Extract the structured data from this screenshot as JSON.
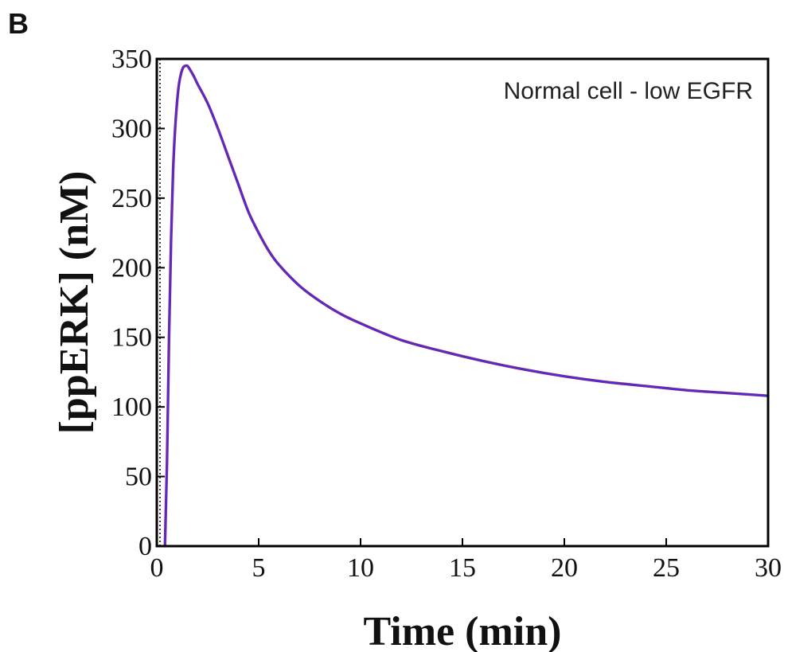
{
  "panel_label": "B",
  "chart_data": {
    "type": "line",
    "title": "",
    "xlabel": "Time (min)",
    "ylabel": "[ppERK] (nM)",
    "annotation": "Normal cell - low EGFR",
    "xlim": [
      0,
      30
    ],
    "ylim": [
      0,
      350
    ],
    "xticks": [
      0,
      5,
      10,
      15,
      20,
      25,
      30
    ],
    "yticks": [
      0,
      50,
      100,
      150,
      200,
      250,
      300,
      350
    ],
    "colors": {
      "series_red": "#d22020",
      "series_blue": "#4a2fd6"
    },
    "series": [
      {
        "x": [
          0.4,
          0.5,
          0.6,
          0.7,
          0.8,
          0.9,
          1.0,
          1.1,
          1.2,
          1.3,
          1.4,
          1.5,
          1.6,
          1.8,
          2.0,
          2.5,
          3.0,
          3.5,
          4.0,
          4.5,
          5.0,
          5.5,
          6.0,
          7.0,
          8.0,
          9.0,
          10.0,
          12.0,
          14.0,
          16.0,
          18.0,
          20.0,
          22.0,
          24.0,
          26.0,
          28.0,
          30.0
        ],
        "y": [
          0,
          60,
          150,
          220,
          270,
          300,
          320,
          333,
          340,
          344,
          345,
          345,
          343,
          338,
          332,
          318,
          300,
          280,
          260,
          240,
          225,
          212,
          202,
          187,
          176,
          167,
          160,
          148,
          140,
          133,
          127,
          122,
          118,
          115,
          112,
          110,
          108
        ]
      },
      {
        "x": [
          0.4,
          0.5,
          0.6,
          0.7,
          0.8,
          0.9,
          1.0,
          1.1,
          1.2,
          1.3,
          1.4,
          1.5,
          1.6,
          1.8,
          2.0,
          2.5,
          3.0,
          3.5,
          4.0,
          4.5,
          5.0,
          5.5,
          6.0,
          7.0,
          8.0,
          9.0,
          10.0,
          12.0,
          14.0,
          16.0,
          18.0,
          20.0,
          22.0,
          24.0,
          26.0,
          28.0,
          30.0
        ],
        "y": [
          0,
          60,
          150,
          220,
          270,
          300,
          320,
          333,
          340,
          344,
          345,
          345,
          343,
          338,
          332,
          318,
          300,
          280,
          260,
          240,
          225,
          212,
          202,
          187,
          176,
          167,
          160,
          148,
          140,
          133,
          127,
          122,
          118,
          115,
          112,
          110,
          108
        ]
      }
    ]
  }
}
